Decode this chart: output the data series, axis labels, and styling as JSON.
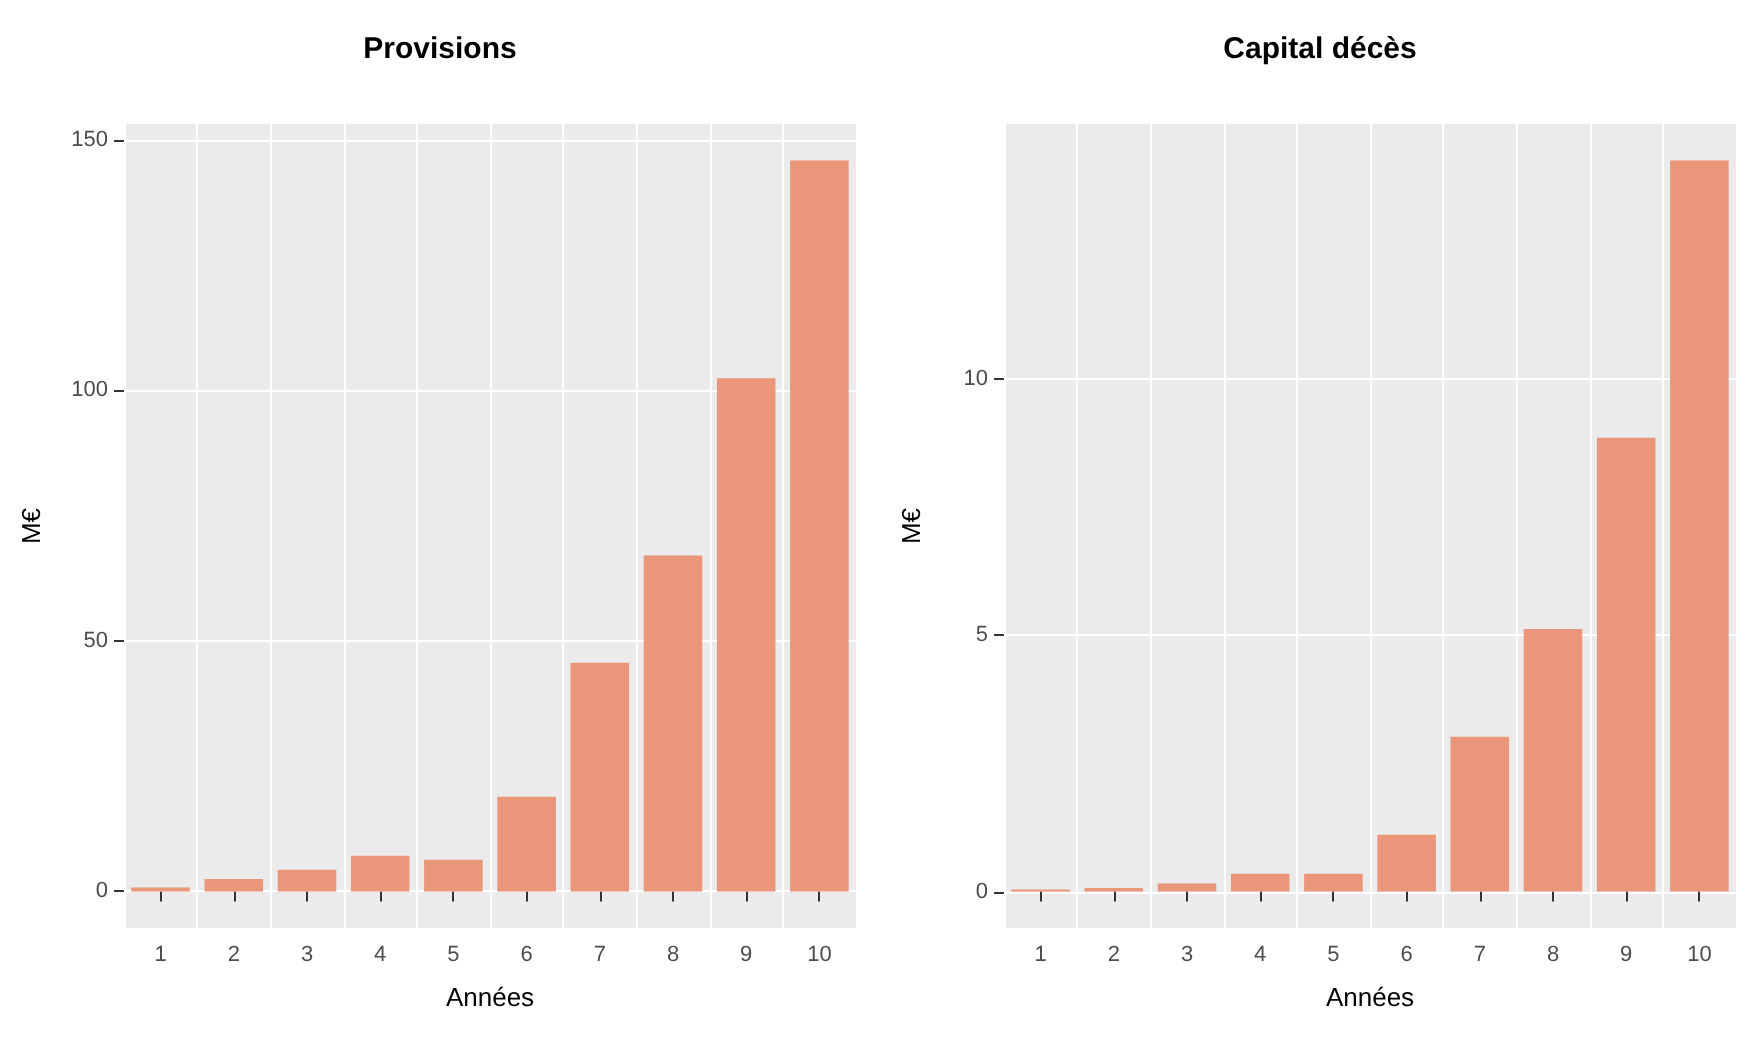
{
  "chart_data": [
    {
      "type": "bar",
      "title": "Provisions",
      "xlabel": "Années",
      "ylabel": "M€",
      "categories": [
        "1",
        "2",
        "3",
        "4",
        "5",
        "6",
        "7",
        "8",
        "9",
        "10"
      ],
      "values": [
        0.8,
        2.5,
        4.3,
        7.1,
        6.3,
        18.9,
        45.6,
        67.0,
        102.4,
        145.8
      ],
      "color": "#e9967a",
      "ylim": [
        -7.3,
        153.1
      ],
      "yticks": [
        0,
        50,
        100,
        150
      ],
      "grid": true
    },
    {
      "type": "bar",
      "title": "Capital décès",
      "xlabel": "Années",
      "ylabel": "M€",
      "categories": [
        "1",
        "2",
        "3",
        "4",
        "5",
        "6",
        "7",
        "8",
        "9",
        "10"
      ],
      "values": [
        0.04,
        0.07,
        0.16,
        0.35,
        0.35,
        1.11,
        3.02,
        5.12,
        8.85,
        14.26
      ],
      "color": "#e9967a",
      "ylim": [
        -0.71,
        14.97
      ],
      "yticks": [
        0,
        5,
        10
      ],
      "grid": true
    }
  ]
}
